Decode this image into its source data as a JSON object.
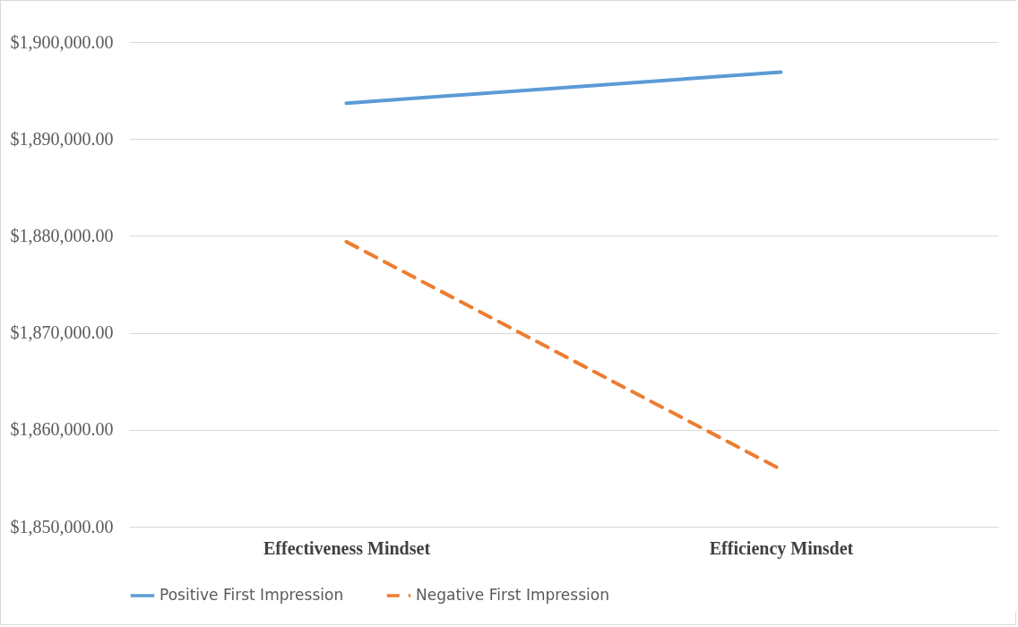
{
  "chart_data": {
    "type": "line",
    "categories": [
      "Effectiveness Mindset",
      "Efficiency Minsdet"
    ],
    "series": [
      {
        "name": "Positive First Impression",
        "color": "#5b9bd5",
        "line_style": "solid",
        "values": [
          1893700,
          1896900
        ]
      },
      {
        "name": "Negative First Impression",
        "color": "#ed7d31",
        "line_style": "dashed",
        "values": [
          1879400,
          1855900
        ]
      }
    ],
    "ylim": [
      1850000,
      1900000
    ],
    "yticks": [
      {
        "value": 1850000,
        "label": "$1,850,000.00"
      },
      {
        "value": 1860000,
        "label": "$1,860,000.00"
      },
      {
        "value": 1870000,
        "label": "$1,870,000.00"
      },
      {
        "value": 1880000,
        "label": "$1,880,000.00"
      },
      {
        "value": 1890000,
        "label": "$1,890,000.00"
      },
      {
        "value": 1900000,
        "label": "$1,900,000.00"
      }
    ],
    "grid": "y",
    "legend": "bottom",
    "marker": "none"
  }
}
